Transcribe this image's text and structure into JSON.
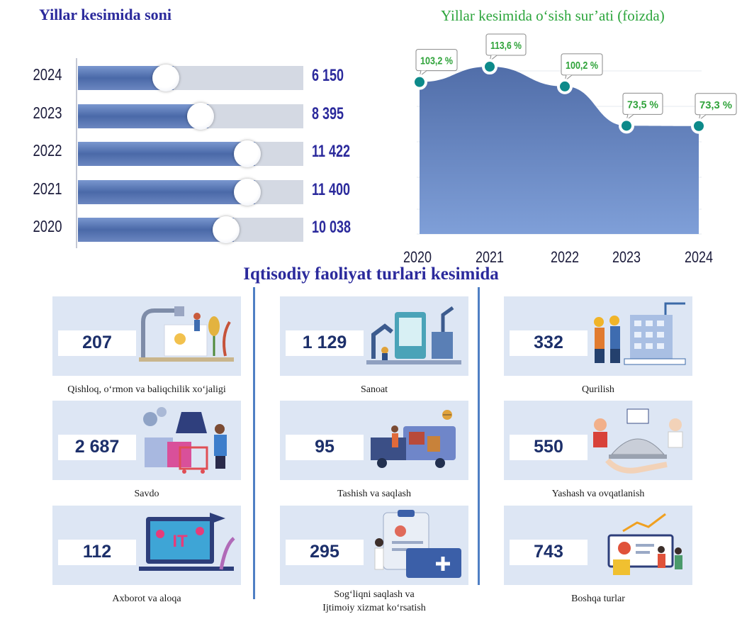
{
  "titles": {
    "left": "Yillar kesimida soni",
    "right": "Yillar kesimida o‘sish sur’ati (foizda)",
    "middle": "Iqtisodiy faoliyat turlari kesimida"
  },
  "colors": {
    "title_blue": "#2b2a9c",
    "title_green": "#2ca53c",
    "bar_fill": "#5b79b8",
    "bar_track": "#d4d9e3",
    "area_fill": "#6787c4",
    "marker": "#0d8a8a",
    "label_green": "#2fa33a",
    "card_bg": "#dde6f4",
    "divider": "#4f7fc4"
  },
  "chart_data": [
    {
      "type": "bar",
      "title": "Yillar kesimida soni",
      "orientation": "horizontal",
      "categories": [
        "2024",
        "2023",
        "2022",
        "2021",
        "2020"
      ],
      "values": [
        6150,
        8395,
        11422,
        11400,
        10038
      ],
      "value_labels": [
        "6 150",
        "8 395",
        "11 422",
        "11 400",
        "10 038"
      ],
      "xlim": [
        0,
        14500
      ]
    },
    {
      "type": "area",
      "title": "Yillar kesimida o‘sish sur’ati (foizda)",
      "categories": [
        "2020",
        "2021",
        "2022",
        "2023",
        "2024"
      ],
      "values": [
        103.2,
        113.6,
        100.2,
        73.5,
        73.3
      ],
      "value_labels": [
        "103,2 %",
        "113,6 %",
        "100,2 %",
        "73,5 %",
        "73,3 %"
      ],
      "ylim": [
        0,
        130
      ],
      "grid": true
    }
  ],
  "categories": [
    {
      "value": "207",
      "label": "Qishloq, o‘rmon va baliqchilik xo‘jaligi",
      "icon": "agriculture-illustration"
    },
    {
      "value": "1 129",
      "label": "Sanoat",
      "icon": "industry-illustration"
    },
    {
      "value": "332",
      "label": "Qurilish",
      "icon": "construction-illustration"
    },
    {
      "value": "2 687",
      "label": "Savdo",
      "icon": "trade-illustration"
    },
    {
      "value": "95",
      "label": "Tashish va saqlash",
      "icon": "transport-illustration"
    },
    {
      "value": "550",
      "label": "Yashash va ovqatlanish",
      "icon": "accommodation-illustration"
    },
    {
      "value": "112",
      "label": "Axborot va aloqa",
      "icon": "it-illustration",
      "illustration_text": "IT"
    },
    {
      "value": "295",
      "label": "Sog‘liqni saqlash va Ijtimoiy xizmat ko‘rsatish",
      "label_lines": [
        "Sog‘liqni saqlash va",
        "Ijtimoiy xizmat ko‘rsatish"
      ],
      "icon": "health-illustration"
    },
    {
      "value": "743",
      "label": "Boshqa turlar",
      "icon": "other-illustration"
    }
  ]
}
